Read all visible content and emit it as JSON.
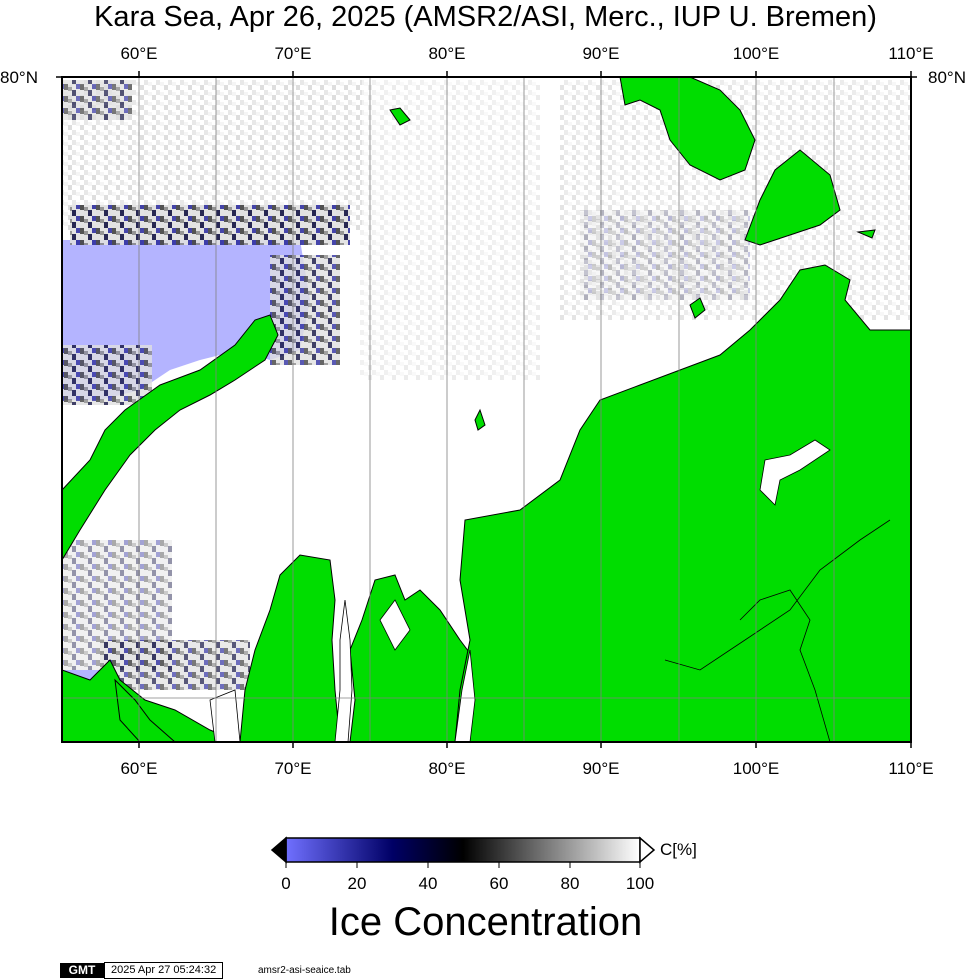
{
  "title": "Kara Sea, Apr 26, 2025 (AMSR2/ASI, Merc., IUP U. Bremen)",
  "map": {
    "lon_labels": [
      "60°E",
      "70°E",
      "80°E",
      "90°E",
      "100°E",
      "110°E"
    ],
    "lat_label": "80°N",
    "colors": {
      "land": "#00dd00",
      "open_water": "#ffffff",
      "low_concentration": "#b4b4ff",
      "frame": "#000000",
      "gridline": "#808080"
    }
  },
  "colorbar": {
    "title": "Ice Concentration",
    "unit": "C[%]",
    "ticks": [
      "0",
      "20",
      "40",
      "60",
      "80",
      "100"
    ],
    "gradient": [
      "#7070ff",
      "#000066",
      "#000000",
      "#808080",
      "#ffffff"
    ]
  },
  "footer": {
    "logo": "GMT",
    "timestamp": "2025 Apr 27 05:24:32",
    "filename": "amsr2-asi-seaice.tab"
  }
}
